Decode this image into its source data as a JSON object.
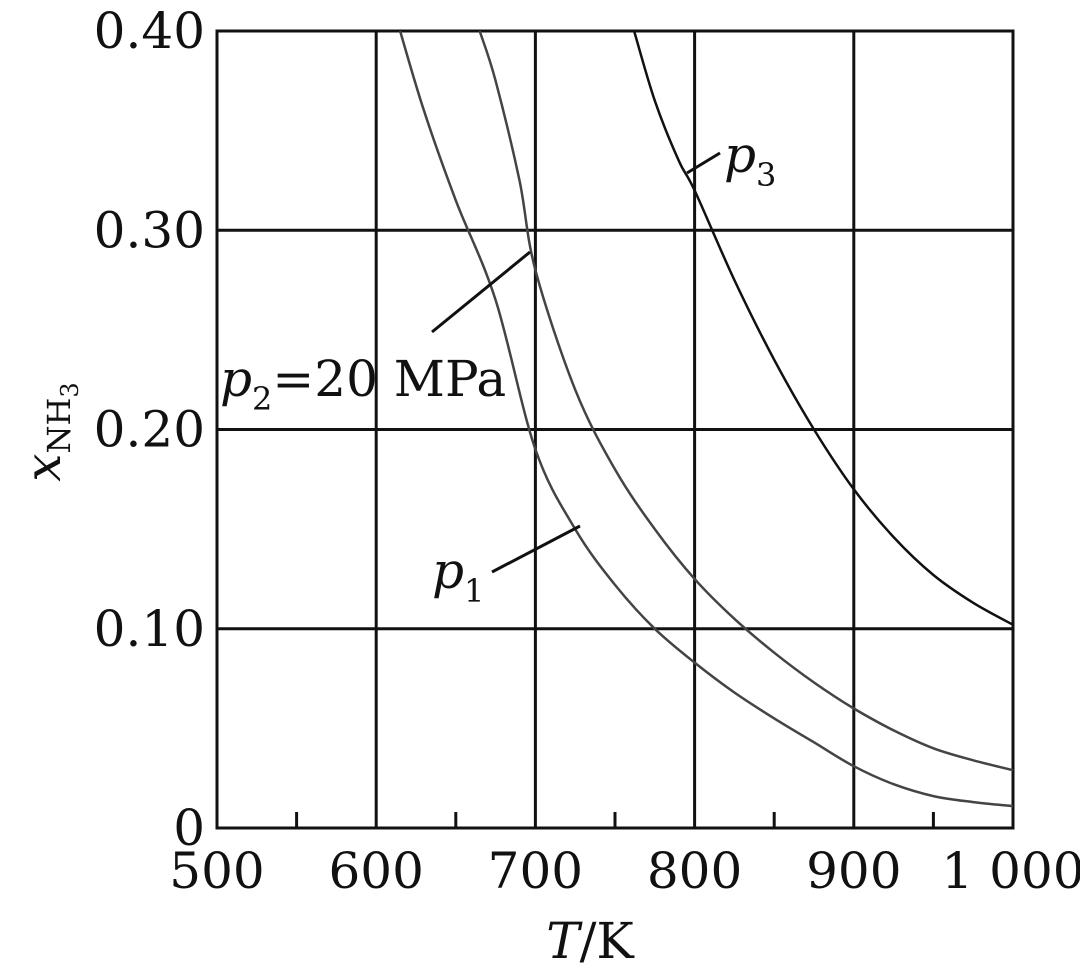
{
  "chart_data": {
    "type": "line",
    "xlabel": {
      "symbol": "T",
      "unit": "/K"
    },
    "ylabel": {
      "symbol": "x",
      "subscript": "NH",
      "subscript_digit": "3"
    },
    "xlim": [
      500,
      1000
    ],
    "ylim": [
      0,
      0.4
    ],
    "x_ticks": [
      500,
      600,
      700,
      800,
      900,
      1000
    ],
    "x_tick_labels": [
      "500",
      "600",
      "700",
      "800",
      "900",
      "1 000"
    ],
    "x_minor_ticks": [
      550,
      650,
      750,
      850,
      950
    ],
    "y_ticks": [
      0,
      0.1,
      0.2,
      0.3,
      0.4
    ],
    "y_tick_labels": [
      "0",
      "0.10",
      "0.20",
      "0.30",
      "0.40"
    ],
    "grid": true,
    "series": [
      {
        "name": "p1",
        "label_symbol": "p",
        "label_subscript": "1",
        "label_suffix": "",
        "color": "#444444",
        "x": [
          615,
          630,
          650,
          675,
          700,
          725,
          750,
          775,
          800,
          825,
          850,
          875,
          900,
          925,
          950,
          975,
          1000
        ],
        "y": [
          0.4,
          0.36,
          0.315,
          0.265,
          0.19,
          0.15,
          0.122,
          0.1,
          0.083,
          0.068,
          0.055,
          0.043,
          0.031,
          0.022,
          0.016,
          0.013,
          0.011
        ]
      },
      {
        "name": "p2",
        "label_symbol": "p",
        "label_subscript": "2",
        "label_suffix": "=20 MPa",
        "color": "#444444",
        "x": [
          665,
          675,
          690,
          700,
          725,
          750,
          775,
          800,
          825,
          850,
          875,
          900,
          925,
          950,
          975,
          1000
        ],
        "y": [
          0.4,
          0.375,
          0.325,
          0.28,
          0.22,
          0.18,
          0.15,
          0.125,
          0.105,
          0.088,
          0.073,
          0.06,
          0.049,
          0.04,
          0.034,
          0.029
        ]
      },
      {
        "name": "p3",
        "label_symbol": "p",
        "label_subscript": "3",
        "label_suffix": "",
        "color": "#111111",
        "x": [
          762,
          775,
          790,
          800,
          825,
          850,
          875,
          900,
          925,
          950,
          975,
          1000
        ],
        "y": [
          0.4,
          0.365,
          0.335,
          0.32,
          0.275,
          0.235,
          0.2,
          0.17,
          0.146,
          0.127,
          0.113,
          0.102
        ]
      }
    ]
  }
}
